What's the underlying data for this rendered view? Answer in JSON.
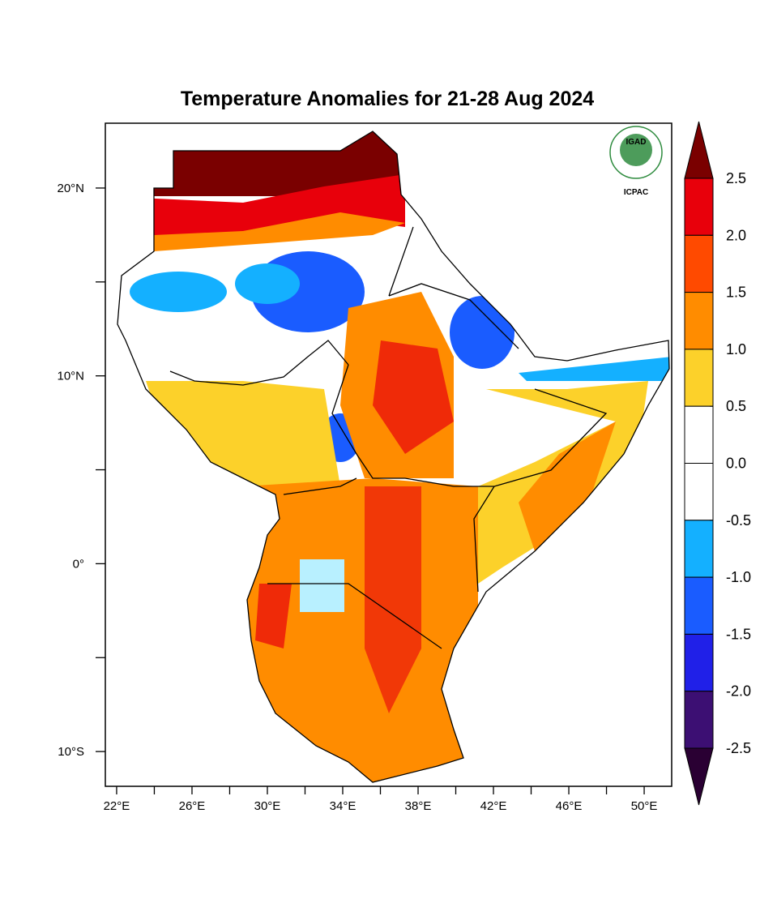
{
  "title": "Temperature Anomalies for 21-28 Aug 2024",
  "logo": {
    "name": "IGAD",
    "org": "ICPAC"
  },
  "axes": {
    "xlim": [
      21.4,
      51.46
    ],
    "xticks": [
      {
        "value": 22,
        "label": "22°E"
      },
      {
        "value": 26,
        "label": "26°E"
      },
      {
        "value": 30,
        "label": "30°E"
      },
      {
        "value": 34,
        "label": "34°E"
      },
      {
        "value": 38,
        "label": "38°E"
      },
      {
        "value": 42,
        "label": "42°E"
      },
      {
        "value": 46,
        "label": "46°E"
      },
      {
        "value": 50,
        "label": "50°E"
      }
    ],
    "ylim": [
      -11.85,
      23.45
    ],
    "yticks": [
      {
        "value": -10,
        "label": "10°S"
      },
      {
        "value": 0,
        "label": "0°"
      },
      {
        "value": 10,
        "label": "10°N"
      },
      {
        "value": 20,
        "label": "20°N"
      }
    ]
  },
  "colorbar": {
    "ticks": [
      2.5,
      {
        "value": 2,
        "label": "2.0"
      },
      1.5,
      {
        "value": 1,
        "label": "1.0"
      },
      0.5,
      {
        "value": 0,
        "label": "0.0"
      },
      -0.5,
      {
        "value": -1,
        "label": "-1.0"
      },
      -1.5,
      {
        "value": -2,
        "label": "-2.0"
      },
      -2.5
    ],
    "colors": [
      "#2a0033",
      "#3c0f73",
      "#2020e8",
      "#1a5cff",
      "#14b0ff",
      "#ffffff",
      "#ffffff",
      "#fcd12a",
      "#ff8c00",
      "#ff4a00",
      "#e8000b",
      "#7a0000"
    ]
  }
}
